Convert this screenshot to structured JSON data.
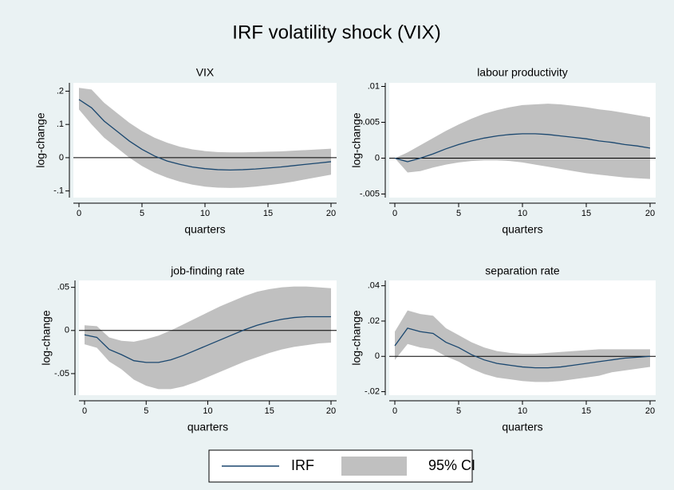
{
  "title": "IRF volatility shock (VIX)",
  "legend": {
    "entries": [
      {
        "name": "IRF",
        "color": "#1a476f"
      },
      {
        "name": "95% CI",
        "color": "#c0c0c0"
      }
    ]
  },
  "chart_data": [
    {
      "type": "line",
      "title": "VIX",
      "xlabel": "quarters",
      "ylabel": "log-change",
      "zero_line": true,
      "x": [
        0,
        1,
        2,
        3,
        4,
        5,
        6,
        7,
        8,
        9,
        10,
        11,
        12,
        13,
        14,
        15,
        16,
        17,
        18,
        19,
        20
      ],
      "values": [
        0.175,
        0.15,
        0.11,
        0.08,
        0.05,
        0.025,
        0.005,
        -0.01,
        -0.02,
        -0.028,
        -0.033,
        -0.036,
        -0.037,
        -0.036,
        -0.034,
        -0.031,
        -0.028,
        -0.024,
        -0.02,
        -0.016,
        -0.012
      ],
      "upper": [
        0.21,
        0.205,
        0.165,
        0.135,
        0.105,
        0.08,
        0.06,
        0.045,
        0.033,
        0.025,
        0.02,
        0.017,
        0.016,
        0.016,
        0.017,
        0.018,
        0.019,
        0.021,
        0.023,
        0.025,
        0.027
      ],
      "lower": [
        0.145,
        0.1,
        0.06,
        0.03,
        0.0,
        -0.025,
        -0.045,
        -0.06,
        -0.072,
        -0.081,
        -0.087,
        -0.09,
        -0.091,
        -0.09,
        -0.087,
        -0.083,
        -0.078,
        -0.072,
        -0.065,
        -0.058,
        -0.051
      ],
      "xlim": [
        0,
        20
      ],
      "xticks": [
        0,
        5,
        10,
        15,
        20
      ],
      "ylim": [
        -0.12,
        0.225
      ],
      "yticks": [
        {
          "value": -0.1,
          "label": "-.1"
        },
        0,
        {
          "value": 0.1,
          "label": ".1"
        },
        {
          "value": 0.2,
          "label": ".2"
        }
      ]
    },
    {
      "type": "line",
      "title": "labour productivity",
      "xlabel": "quarters",
      "ylabel": "log-change",
      "zero_line": true,
      "x": [
        0,
        1,
        2,
        3,
        4,
        5,
        6,
        7,
        8,
        9,
        10,
        11,
        12,
        13,
        14,
        15,
        16,
        17,
        18,
        19,
        20
      ],
      "values": [
        0,
        -0.0005,
        0,
        0.0006,
        0.0013,
        0.0019,
        0.0024,
        0.0028,
        0.0031,
        0.0033,
        0.0034,
        0.0034,
        0.0033,
        0.0031,
        0.0029,
        0.0027,
        0.0024,
        0.0022,
        0.0019,
        0.0017,
        0.0014
      ],
      "upper": [
        0,
        0.0008,
        0.0018,
        0.0028,
        0.0038,
        0.0047,
        0.0055,
        0.0062,
        0.0067,
        0.0071,
        0.0074,
        0.0075,
        0.0076,
        0.0075,
        0.0073,
        0.0071,
        0.0068,
        0.0066,
        0.0063,
        0.006,
        0.0057
      ],
      "lower": [
        0,
        -0.002,
        -0.0018,
        -0.0013,
        -0.0009,
        -0.0006,
        -0.0004,
        -0.0003,
        -0.0003,
        -0.0004,
        -0.0006,
        -0.0009,
        -0.0012,
        -0.0015,
        -0.0018,
        -0.0021,
        -0.0023,
        -0.0025,
        -0.0027,
        -0.0028,
        -0.0029
      ],
      "xlim": [
        0,
        20
      ],
      "xticks": [
        0,
        5,
        10,
        15,
        20
      ],
      "ylim": [
        -0.0055,
        0.0105
      ],
      "yticks": [
        {
          "value": -0.005,
          "label": "-.005"
        },
        0,
        {
          "value": 0.005,
          "label": ".005"
        },
        {
          "value": 0.01,
          "label": ".01"
        }
      ]
    },
    {
      "type": "line",
      "title": "job-finding rate",
      "xlabel": "quarters",
      "ylabel": "log-change",
      "zero_line": true,
      "x": [
        0,
        1,
        2,
        3,
        4,
        5,
        6,
        7,
        8,
        9,
        10,
        11,
        12,
        13,
        14,
        15,
        16,
        17,
        18,
        19,
        20
      ],
      "values": [
        -0.005,
        -0.008,
        -0.022,
        -0.028,
        -0.035,
        -0.037,
        -0.037,
        -0.034,
        -0.029,
        -0.023,
        -0.017,
        -0.011,
        -0.005,
        0.001,
        0.006,
        0.01,
        0.013,
        0.015,
        0.016,
        0.016,
        0.016
      ],
      "upper": [
        0.006,
        0.005,
        -0.008,
        -0.012,
        -0.013,
        -0.01,
        -0.006,
        0.0,
        0.007,
        0.014,
        0.021,
        0.028,
        0.034,
        0.04,
        0.045,
        0.048,
        0.05,
        0.051,
        0.051,
        0.05,
        0.049
      ],
      "lower": [
        -0.016,
        -0.02,
        -0.036,
        -0.045,
        -0.057,
        -0.064,
        -0.068,
        -0.068,
        -0.065,
        -0.06,
        -0.054,
        -0.048,
        -0.042,
        -0.036,
        -0.031,
        -0.026,
        -0.022,
        -0.019,
        -0.017,
        -0.015,
        -0.014
      ],
      "xlim": [
        0,
        20
      ],
      "xticks": [
        0,
        5,
        10,
        15,
        20
      ],
      "ylim": [
        -0.075,
        0.058
      ],
      "yticks": [
        {
          "value": -0.05,
          "label": "-.05"
        },
        0,
        {
          "value": 0.05,
          "label": ".05"
        }
      ]
    },
    {
      "type": "line",
      "title": "separation rate",
      "xlabel": "quarters",
      "ylabel": "log-change",
      "zero_line": true,
      "x": [
        0,
        1,
        2,
        3,
        4,
        5,
        6,
        7,
        8,
        9,
        10,
        11,
        12,
        13,
        14,
        15,
        16,
        17,
        18,
        19,
        20
      ],
      "values": [
        0.006,
        0.016,
        0.014,
        0.013,
        0.008,
        0.005,
        0.001,
        -0.002,
        -0.004,
        -0.005,
        -0.006,
        -0.0065,
        -0.0065,
        -0.006,
        -0.005,
        -0.004,
        -0.003,
        -0.002,
        -0.001,
        -0.0005,
        0
      ],
      "upper": [
        0.014,
        0.026,
        0.024,
        0.023,
        0.016,
        0.012,
        0.008,
        0.005,
        0.003,
        0.002,
        0.0015,
        0.0015,
        0.002,
        0.0025,
        0.003,
        0.0035,
        0.004,
        0.004,
        0.004,
        0.004,
        0.004
      ],
      "lower": [
        -0.002,
        0.007,
        0.005,
        0.004,
        0.0,
        -0.003,
        -0.007,
        -0.01,
        -0.012,
        -0.013,
        -0.014,
        -0.0145,
        -0.0145,
        -0.014,
        -0.013,
        -0.012,
        -0.011,
        -0.009,
        -0.008,
        -0.007,
        -0.006
      ],
      "xlim": [
        0,
        20
      ],
      "xticks": [
        0,
        5,
        10,
        15,
        20
      ],
      "ylim": [
        -0.022,
        0.043
      ],
      "yticks": [
        {
          "value": -0.02,
          "label": "-.02"
        },
        0,
        {
          "value": 0.02,
          "label": ".02"
        },
        {
          "value": 0.04,
          "label": ".04"
        }
      ]
    }
  ]
}
